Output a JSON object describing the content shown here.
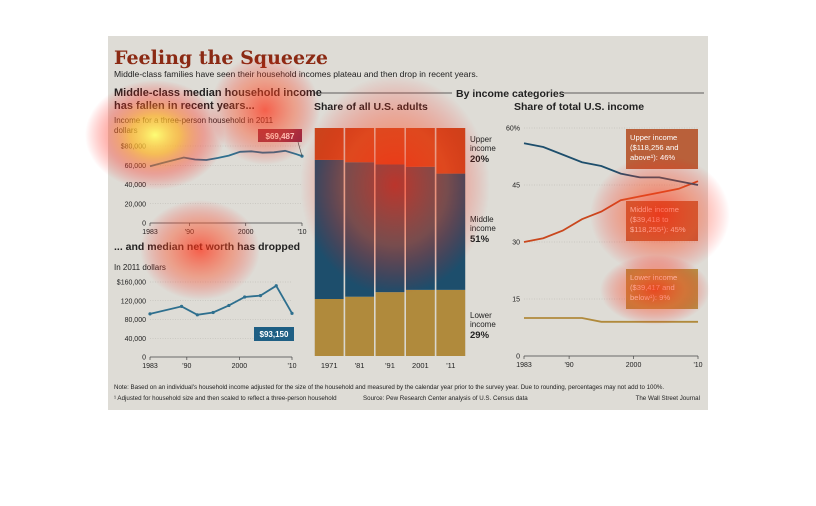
{
  "title": "Feeling the Squeeze",
  "subtitle": "Middle-class families have seen their household incomes plateau and then drop in recent years.",
  "by_income_header": "By income categories",
  "note": "Note: Based on an individual's household income adjusted for the size of the household and measured by the calendar year prior to the survey year. Due to rounding, percentages may not add to 100%.",
  "footnote": "¹ Adjusted for household size and then scaled to reflect a three-person household",
  "source": "Source: Pew Research Center analysis of U.S. Census data",
  "credit": "The Wall Street Journal",
  "colors": {
    "panel_bg": "#dedcd6",
    "income_line": "#2e6f8e",
    "upper": "#c9471d",
    "middle": "#1d4e6c",
    "lower": "#b08a3c",
    "upper_label_bg": "#b5552c",
    "lower_label_bg": "#b08a3c",
    "networth_label_bg": "#1f5f84"
  },
  "chart_data": [
    {
      "type": "line",
      "title": "Middle-class median household income has fallen in recent years...",
      "subtitle": "Income for a three-person household in 2011 dollars",
      "x": [
        1983,
        1985,
        1987,
        1989,
        1991,
        1993,
        1995,
        1997,
        1999,
        2001,
        2003,
        2005,
        2007,
        2009,
        2010
      ],
      "values": [
        59000,
        62000,
        65000,
        68000,
        66000,
        65500,
        67500,
        70000,
        74000,
        74500,
        73000,
        73500,
        75000,
        71500,
        69487
      ],
      "end_label": "$69,487",
      "ylim": [
        0,
        80000
      ],
      "yticks": [
        0,
        20000,
        40000,
        60000,
        80000
      ],
      "ytick_labels": [
        "0",
        "20,000",
        "40,000",
        "60,000",
        "$80,000"
      ],
      "xtick_labels": [
        "1983",
        "'90",
        "2000",
        "'10"
      ]
    },
    {
      "type": "line",
      "title": "... and median net worth has dropped",
      "subtitle": "In 2011 dollars",
      "x": [
        1983,
        1989,
        1992,
        1995,
        1998,
        2001,
        2004,
        2007,
        2010
      ],
      "values": [
        92000,
        108000,
        90000,
        95000,
        110000,
        128000,
        131000,
        152000,
        93150
      ],
      "end_label": "$93,150",
      "ylim": [
        0,
        160000
      ],
      "yticks": [
        0,
        40000,
        80000,
        120000,
        160000
      ],
      "ytick_labels": [
        "0",
        "40,000",
        "80,000",
        "120,000",
        "$160,000"
      ],
      "xtick_labels": [
        "1983",
        "'90",
        "2000",
        "'10"
      ]
    },
    {
      "type": "bar",
      "stacked": true,
      "title": "Share of all U.S. adults",
      "categories": [
        "1971",
        "'81",
        "'91",
        "2001",
        "'11"
      ],
      "series": [
        {
          "name": "Lower income",
          "values": [
            25,
            26,
            28,
            29,
            29
          ]
        },
        {
          "name": "Middle income",
          "values": [
            61,
            59,
            56,
            54,
            51
          ]
        },
        {
          "name": "Upper income",
          "values": [
            14,
            15,
            16,
            17,
            20
          ]
        }
      ],
      "labels": [
        {
          "name": "Upper\nincome",
          "value": "20%"
        },
        {
          "name": "Middle\nincome",
          "value": "51%"
        },
        {
          "name": "Lower\nincome",
          "value": "29%"
        }
      ],
      "ylim": [
        0,
        100
      ]
    },
    {
      "type": "line",
      "title": "Share of total U.S. income",
      "x": [
        1983,
        1986,
        1989,
        1992,
        1995,
        1998,
        2001,
        2004,
        2007,
        2010
      ],
      "series": [
        {
          "name": "Upper income",
          "label": "Upper income ($118,256 and above¹): 46%",
          "values": [
            30,
            31,
            33,
            36,
            38,
            41,
            42,
            43,
            44,
            46
          ]
        },
        {
          "name": "Middle income",
          "label": "Middle income ($39,418 to $118,255¹): 45%",
          "values": [
            56,
            55,
            53,
            51,
            50,
            48,
            47,
            47,
            46,
            45
          ]
        },
        {
          "name": "Lower income",
          "label": "Lower income ($39,417 and below¹): 9%",
          "values": [
            10,
            10,
            10,
            10,
            9,
            9,
            9,
            9,
            9,
            9
          ]
        }
      ],
      "ylim": [
        0,
        60
      ],
      "yticks": [
        0,
        15,
        30,
        45,
        60
      ],
      "ytick_labels": [
        "0",
        "15",
        "30",
        "45",
        "60%"
      ],
      "xtick_labels": [
        "1983",
        "'90",
        "2000",
        "'10"
      ]
    }
  ]
}
